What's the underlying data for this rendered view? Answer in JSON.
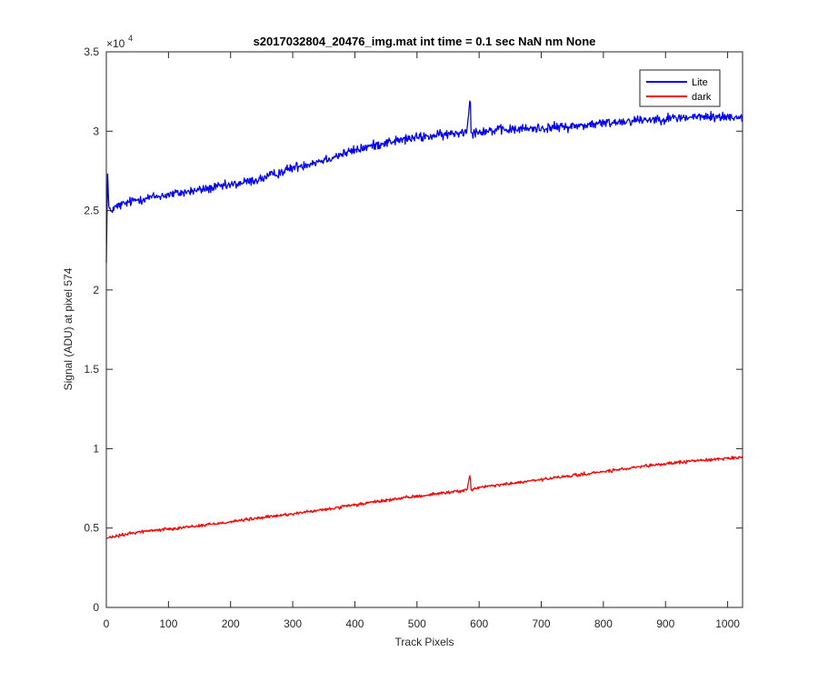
{
  "chart_data": {
    "type": "line",
    "title": "s2017032804_20476_img.mat int time = 0.1 sec  NaN nm None",
    "xlabel": "Track Pixels",
    "ylabel": "Signal (ADU) at pixel 574",
    "xlim": [
      0,
      1024
    ],
    "ylim": [
      0,
      35000
    ],
    "y_exponent_label": "×10",
    "y_exponent_power": "4",
    "x_ticks": [
      0,
      100,
      200,
      300,
      400,
      500,
      600,
      700,
      800,
      900,
      1000
    ],
    "x_tick_labels": [
      "0",
      "100",
      "200",
      "300",
      "400",
      "500",
      "600",
      "700",
      "800",
      "900",
      "1000"
    ],
    "y_ticks": [
      0,
      5000,
      10000,
      15000,
      20000,
      25000,
      30000,
      35000
    ],
    "y_tick_labels": [
      "0",
      "0.5",
      "1",
      "1.5",
      "2",
      "2.5",
      "3",
      "3.5"
    ],
    "grid": false,
    "legend_position": "top-right",
    "series": [
      {
        "name": "Lite",
        "color": "#0000ff",
        "x": [
          0,
          2,
          4,
          6,
          10,
          20,
          50,
          100,
          150,
          200,
          250,
          300,
          350,
          400,
          450,
          500,
          550,
          580,
          585,
          586,
          587,
          590,
          600,
          650,
          700,
          750,
          800,
          850,
          900,
          950,
          1000,
          1023
        ],
        "y": [
          22000,
          27300,
          25200,
          24900,
          25100,
          25300,
          25700,
          26000,
          26300,
          26600,
          27000,
          27700,
          28200,
          28800,
          29300,
          29600,
          29800,
          30000,
          31900,
          31800,
          29900,
          29900,
          30000,
          30100,
          30200,
          30300,
          30500,
          30700,
          30800,
          30900,
          30900,
          30900
        ],
        "noise": 300
      },
      {
        "name": "dark",
        "color": "#ff0000",
        "x": [
          0,
          50,
          100,
          150,
          200,
          250,
          300,
          350,
          400,
          450,
          500,
          550,
          580,
          585,
          586,
          587,
          590,
          600,
          650,
          700,
          750,
          800,
          850,
          900,
          950,
          1000,
          1023
        ],
        "y": [
          4350,
          4750,
          4950,
          5150,
          5400,
          5650,
          5900,
          6150,
          6450,
          6750,
          7000,
          7250,
          7400,
          8300,
          8100,
          7400,
          7450,
          7550,
          7800,
          8050,
          8300,
          8550,
          8800,
          9050,
          9250,
          9400,
          9450
        ],
        "noise": 100
      }
    ]
  }
}
